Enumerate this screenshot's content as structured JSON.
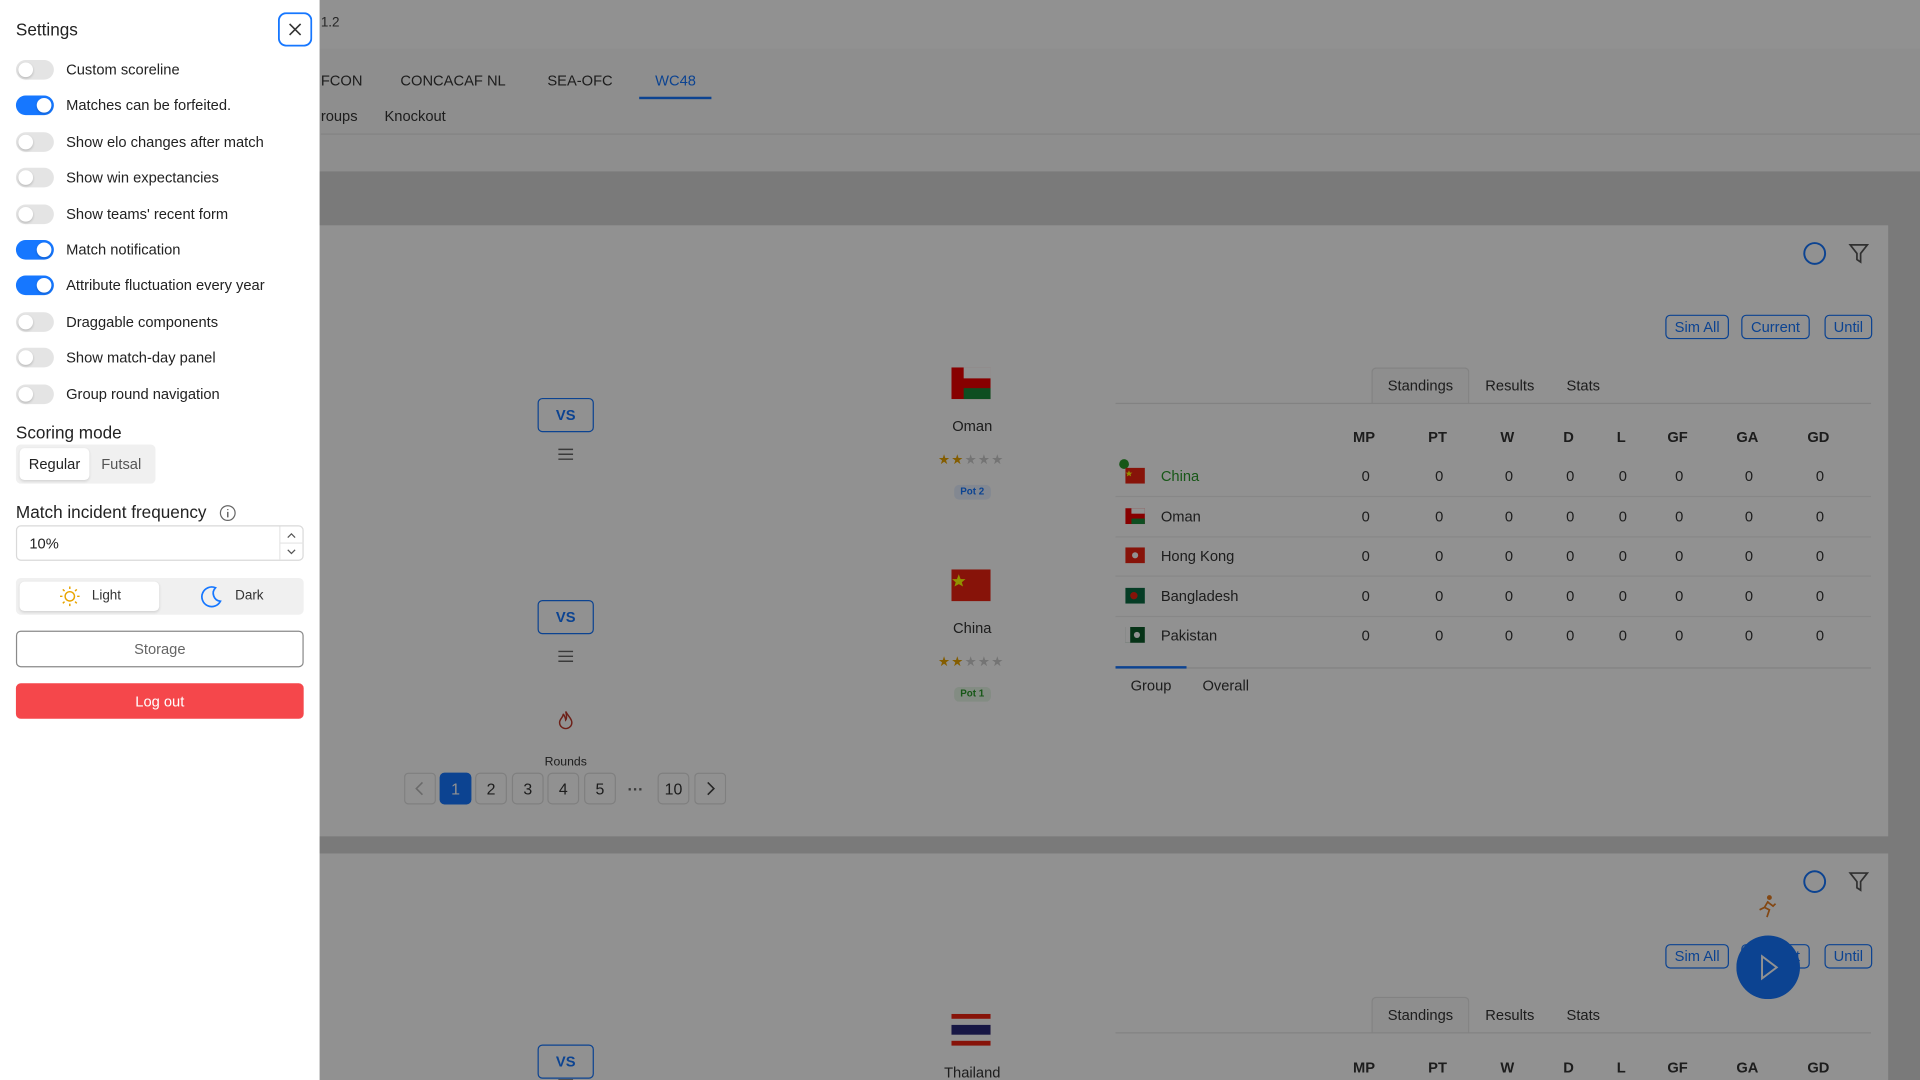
{
  "header": {
    "version": "1.2"
  },
  "nav": {
    "tabs": [
      "FCON",
      "CONCACAF NL",
      "SEA-OFC",
      "WC48"
    ],
    "active_tab": 3,
    "subtabs": [
      "roups",
      "Knockout"
    ]
  },
  "settings": {
    "title": "Settings",
    "toggles": [
      {
        "label": "Custom scoreline",
        "on": false
      },
      {
        "label": "Matches can be forfeited.",
        "on": true
      },
      {
        "label": "Show elo changes after match",
        "on": false
      },
      {
        "label": "Show win expectancies",
        "on": false
      },
      {
        "label": "Show teams' recent form",
        "on": false
      },
      {
        "label": "Match notification",
        "on": true
      },
      {
        "label": "Attribute fluctuation every year",
        "on": true
      },
      {
        "label": "Draggable components",
        "on": false
      },
      {
        "label": "Show match-day panel",
        "on": false
      },
      {
        "label": "Group round navigation",
        "on": false
      }
    ],
    "scoring_mode": {
      "label": "Scoring mode",
      "options": [
        "Regular",
        "Futsal"
      ],
      "selected": 0
    },
    "incident": {
      "label": "Match incident frequency",
      "value": "10%"
    },
    "theme": {
      "options": [
        "Light",
        "Dark"
      ],
      "selected": 0
    },
    "storage": "Storage",
    "logout": "Log out"
  },
  "cards": [
    {
      "actions": [
        "Sim All",
        "Current",
        "Until"
      ],
      "vs": "VS",
      "matches": [
        {
          "team": "Oman",
          "stars": 2,
          "pot": "Pot 2"
        },
        {
          "team": "China",
          "stars": 2,
          "pot": "Pot 1"
        }
      ],
      "rounds_label": "Rounds",
      "pages": [
        1,
        2,
        3,
        4,
        5,
        "···",
        10
      ],
      "current_page": 0,
      "tabs": [
        "Standings",
        "Results",
        "Stats"
      ],
      "columns": [
        "MP",
        "PT",
        "W",
        "D",
        "L",
        "GF",
        "GA",
        "GD"
      ],
      "rows": [
        {
          "team": "China",
          "stats": [
            0,
            0,
            0,
            0,
            0,
            0,
            0,
            0
          ]
        },
        {
          "team": "Oman",
          "stats": [
            0,
            0,
            0,
            0,
            0,
            0,
            0,
            0
          ]
        },
        {
          "team": "Hong Kong",
          "stats": [
            0,
            0,
            0,
            0,
            0,
            0,
            0,
            0
          ]
        },
        {
          "team": "Bangladesh",
          "stats": [
            0,
            0,
            0,
            0,
            0,
            0,
            0,
            0
          ]
        },
        {
          "team": "Pakistan",
          "stats": [
            0,
            0,
            0,
            0,
            0,
            0,
            0,
            0
          ]
        }
      ],
      "subtabs": [
        "Group",
        "Overall"
      ]
    },
    {
      "actions": [
        "Sim All",
        "Current",
        "Until"
      ],
      "vs": "VS",
      "matches": [
        {
          "team": "Thailand"
        }
      ],
      "tabs": [
        "Standings",
        "Results",
        "Stats"
      ],
      "columns": [
        "MP",
        "PT",
        "W",
        "D",
        "L",
        "GF",
        "GA",
        "GD"
      ]
    }
  ]
}
